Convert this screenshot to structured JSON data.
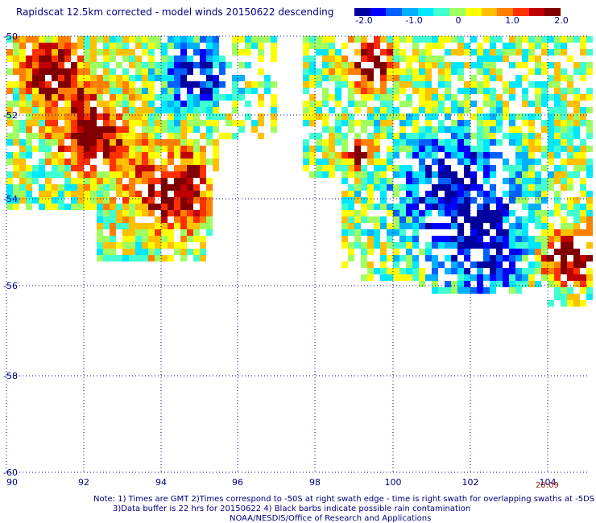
{
  "title": "Rapidscat 12.5km corrected - model winds 20150622 descending",
  "colorbar": {
    "labels": [
      "-2.0",
      "-1.0",
      "0",
      "1.0",
      "2.0"
    ],
    "colors": [
      "#0000a0",
      "#0000ff",
      "#0060ff",
      "#00b0ff",
      "#00e8ff",
      "#40ffd0",
      "#a0ff60",
      "#ffff00",
      "#ffc000",
      "#ff8000",
      "#ff3000",
      "#c00000",
      "#800000"
    ]
  },
  "map": {
    "lat_labels": [
      "-50",
      "-52",
      "-54",
      "-56",
      "-58",
      "-60"
    ],
    "lon_labels": [
      "90",
      "92",
      "94",
      "96",
      "98",
      "100",
      "102",
      "104"
    ]
  },
  "timestamp": "20:09",
  "notes": {
    "line1": "Note: 1) Times are GMT 2)Times correspond to -50S at right swath edge - time is right swath for overlapping swaths at -5DS",
    "line2": "3)Data buffer is 22 hrs for 20150622 4) Black barbs indicate possible rain contamination",
    "line3": "NOAA/NESDIS/Office of Research and Applications"
  }
}
